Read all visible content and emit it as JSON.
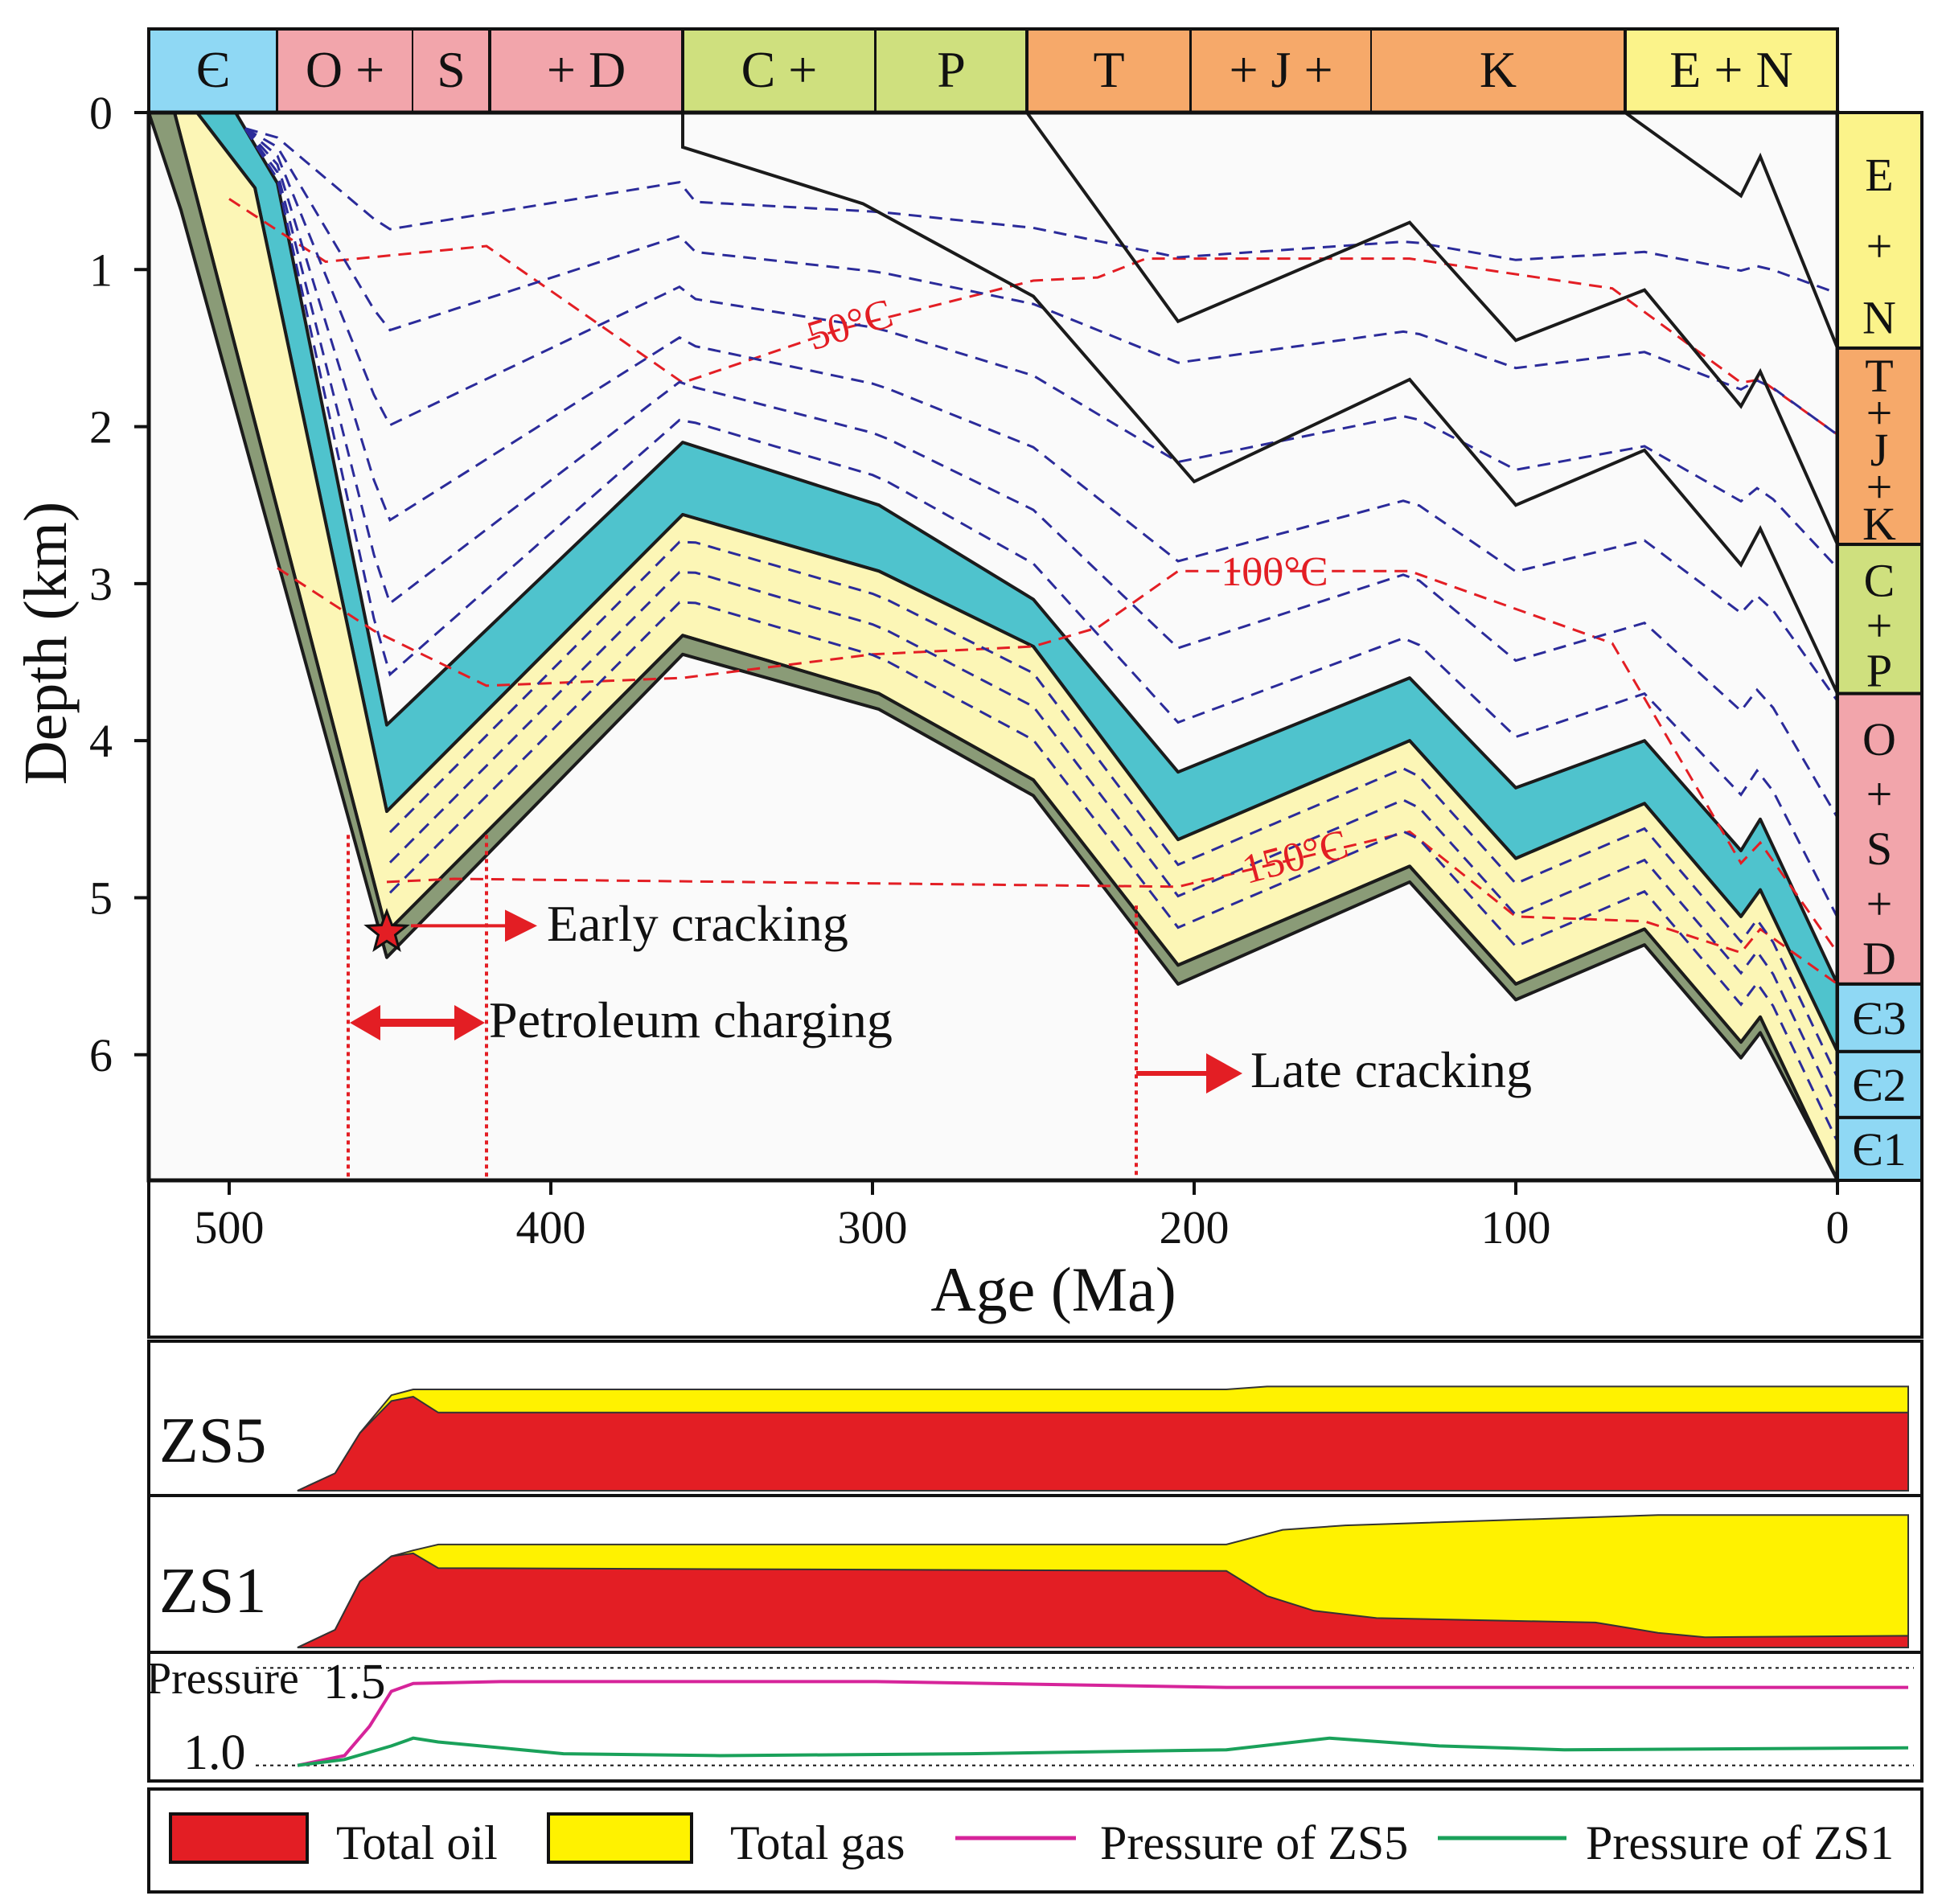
{
  "chart_data": {
    "type": "line",
    "title": "",
    "burial_history": {
      "xlabel": "Age (Ma)",
      "ylabel": "Depth (km)",
      "xlim": [
        525,
        0
      ],
      "ylim": [
        0,
        6.8
      ],
      "x_ticks": [
        "500",
        "400",
        "300",
        "200",
        "100",
        "0"
      ],
      "x_tick_values": [
        500,
        400,
        300,
        200,
        100,
        0
      ],
      "y_ticks": [
        "0",
        "1",
        "2",
        "3",
        "4",
        "5",
        "6"
      ],
      "y_tick_values": [
        0,
        1,
        2,
        3,
        4,
        5,
        6
      ],
      "periods_top": [
        {
          "id": "cambrian",
          "label": "Є",
          "start": 525,
          "end": 485,
          "color": "#8fd8f4"
        },
        {
          "id": "o-s-d-o",
          "label": "O +",
          "start": 485,
          "end": 443,
          "color": "#f2a5ab"
        },
        {
          "id": "o-s-d-s",
          "label": "S",
          "start": 443,
          "end": 419,
          "color": "#f2a5ab"
        },
        {
          "id": "o-s-d-d",
          "label": "+ D",
          "start": 419,
          "end": 359,
          "color": "#f2a5ab"
        },
        {
          "id": "c-p-c",
          "label": "C +",
          "start": 359,
          "end": 299,
          "color": "#cfe07e"
        },
        {
          "id": "c-p-p",
          "label": "P",
          "start": 299,
          "end": 252,
          "color": "#cfe07e"
        },
        {
          "id": "tjk-t",
          "label": "T",
          "start": 252,
          "end": 201,
          "color": "#f6a96a"
        },
        {
          "id": "tjk-j",
          "label": "+   J   +",
          "start": 201,
          "end": 145,
          "color": "#f6a96a"
        },
        {
          "id": "tjk-k",
          "label": "K",
          "start": 145,
          "end": 66,
          "color": "#f6a96a"
        },
        {
          "id": "e-n",
          "label": "E + N",
          "start": 66,
          "end": 0,
          "color": "#fbf38a"
        }
      ],
      "strata_column": [
        {
          "id": "e-n",
          "label": "E + N",
          "top": 0,
          "bottom": 1.5,
          "color": "#fbf38a"
        },
        {
          "id": "t-j-k",
          "label": "T + J + K",
          "top": 1.5,
          "bottom": 2.75,
          "color": "#f6a96a"
        },
        {
          "id": "c-p",
          "label": "C + P",
          "top": 2.75,
          "bottom": 3.7,
          "color": "#cfe07e"
        },
        {
          "id": "o-s-d",
          "label": "O + S + D",
          "top": 3.7,
          "bottom": 5.55,
          "color": "#f2a5ab"
        },
        {
          "id": "e3",
          "label": "Є3",
          "top": 5.55,
          "bottom": 5.98,
          "color": "#8fd8f4"
        },
        {
          "id": "e2",
          "label": "Є2",
          "top": 5.98,
          "bottom": 6.4,
          "color": "#8fd8f4"
        },
        {
          "id": "e1",
          "label": "Є1",
          "top": 6.4,
          "bottom": 6.8,
          "color": "#8fd8f4"
        }
      ],
      "burial_horizons": [
        {
          "name": "base E+N",
          "points": [
            [
              66,
              0
            ],
            [
              30,
              0.53
            ],
            [
              24,
              0.28
            ],
            [
              0,
              1.5
            ]
          ]
        },
        {
          "name": "base T+J+K",
          "points": [
            [
              252,
              0
            ],
            [
              205,
              1.33
            ],
            [
              133,
              0.7
            ],
            [
              100,
              1.45
            ],
            [
              60,
              1.13
            ],
            [
              30,
              1.87
            ],
            [
              24,
              1.65
            ],
            [
              0,
              2.75
            ]
          ]
        },
        {
          "name": "base C+P",
          "points": [
            [
              359,
              0
            ],
            [
              359,
              0.22
            ],
            [
              303,
              0.58
            ],
            [
              250,
              1.17
            ],
            [
              200,
              2.35
            ],
            [
              133,
              1.7
            ],
            [
              100,
              2.5
            ],
            [
              60,
              2.15
            ],
            [
              30,
              2.88
            ],
            [
              24,
              2.65
            ],
            [
              0,
              3.7
            ]
          ]
        }
      ],
      "layers": [
        {
          "name": "upper Cambrian (cyan)",
          "color": "#4fc3cd",
          "top": [
            [
              498,
              0
            ],
            [
              485,
              0.45
            ],
            [
              451,
              3.9
            ],
            [
              359,
              2.1
            ],
            [
              298,
              2.5
            ],
            [
              250,
              3.1
            ],
            [
              205,
              4.2
            ],
            [
              133,
              3.6
            ],
            [
              100,
              4.3
            ],
            [
              60,
              4.0
            ],
            [
              30,
              4.7
            ],
            [
              24,
              4.5
            ],
            [
              0,
              5.55
            ]
          ],
          "bottom": [
            [
              510,
              0
            ],
            [
              492,
              0.48
            ],
            [
              451,
              4.45
            ],
            [
              359,
              2.56
            ],
            [
              298,
              2.92
            ],
            [
              250,
              3.4
            ],
            [
              205,
              4.63
            ],
            [
              133,
              4.0
            ],
            [
              100,
              4.75
            ],
            [
              60,
              4.4
            ],
            [
              30,
              5.12
            ],
            [
              24,
              4.95
            ],
            [
              0,
              5.98
            ]
          ]
        },
        {
          "name": "middle-lower Cambrian (yellow)",
          "color": "#fcf6b6",
          "top": [
            [
              510,
              0
            ],
            [
              492,
              0.48
            ],
            [
              451,
              4.45
            ],
            [
              359,
              2.56
            ],
            [
              298,
              2.92
            ],
            [
              250,
              3.4
            ],
            [
              205,
              4.63
            ],
            [
              133,
              4.0
            ],
            [
              100,
              4.75
            ],
            [
              60,
              4.4
            ],
            [
              30,
              5.12
            ],
            [
              24,
              4.95
            ],
            [
              0,
              5.98
            ]
          ],
          "bottom": [
            [
              517,
              0
            ],
            [
              510,
              0.55
            ],
            [
              451,
              5.22
            ],
            [
              359,
              3.33
            ],
            [
              298,
              3.7
            ],
            [
              250,
              4.25
            ],
            [
              205,
              5.43
            ],
            [
              133,
              4.8
            ],
            [
              100,
              5.55
            ],
            [
              60,
              5.2
            ],
            [
              30,
              5.92
            ],
            [
              24,
              5.76
            ],
            [
              0,
              6.8
            ]
          ]
        },
        {
          "name": "basal Cambrian (olive)",
          "color": "#8a9b77",
          "top": [
            [
              517,
              0
            ],
            [
              510,
              0.55
            ],
            [
              451,
              5.22
            ],
            [
              359,
              3.33
            ],
            [
              298,
              3.7
            ],
            [
              250,
              4.25
            ],
            [
              205,
              5.43
            ],
            [
              133,
              4.8
            ],
            [
              100,
              5.55
            ],
            [
              60,
              5.2
            ],
            [
              30,
              5.92
            ],
            [
              24,
              5.76
            ],
            [
              0,
              6.8
            ]
          ],
          "bottom": [
            [
              525,
              0
            ],
            [
              515,
              0.62
            ],
            [
              451,
              5.38
            ],
            [
              359,
              3.45
            ],
            [
              298,
              3.8
            ],
            [
              250,
              4.35
            ],
            [
              205,
              5.55
            ],
            [
              133,
              4.9
            ],
            [
              100,
              5.65
            ],
            [
              60,
              5.3
            ],
            [
              30,
              6.02
            ],
            [
              24,
              5.86
            ],
            [
              0,
              6.8
            ]
          ]
        }
      ],
      "isotherms": [
        {
          "label": "50°C",
          "points": [
            [
              500,
              0.55
            ],
            [
              470,
              0.95
            ],
            [
              420,
              0.85
            ],
            [
              359,
              1.72
            ],
            [
              310,
              1.38
            ],
            [
              250,
              1.07
            ],
            [
              230,
              1.05
            ],
            [
              215,
              0.93
            ],
            [
              133,
              0.93
            ],
            [
              70,
              1.12
            ],
            [
              30,
              1.72
            ],
            [
              24,
              1.7
            ],
            [
              0,
              2.05
            ]
          ]
        },
        {
          "label": "100°C",
          "points": [
            [
              485,
              2.9
            ],
            [
              455,
              3.3
            ],
            [
              420,
              3.65
            ],
            [
              359,
              3.6
            ],
            [
              300,
              3.45
            ],
            [
              250,
              3.4
            ],
            [
              230,
              3.28
            ],
            [
              205,
              2.92
            ],
            [
              133,
              2.92
            ],
            [
              70,
              3.38
            ],
            [
              30,
              4.78
            ],
            [
              24,
              4.65
            ],
            [
              0,
              5.35
            ]
          ]
        },
        {
          "label": "150°C",
          "points": [
            [
              451,
              4.9
            ],
            [
              430,
              4.88
            ],
            [
              205,
              4.93
            ],
            [
              133,
              4.58
            ],
            [
              100,
              5.12
            ],
            [
              60,
              5.15
            ],
            [
              30,
              5.35
            ],
            [
              24,
              5.2
            ],
            [
              0,
              5.55
            ]
          ]
        }
      ],
      "annotations": {
        "early_cracking": "Early cracking",
        "petroleum_charging": "Petroleum charging",
        "late_cracking": "Late cracking",
        "early_cracking_age": 451,
        "charging_range": [
          463,
          420
        ],
        "late_cracking_age": 218
      }
    },
    "hydrocarbon_panels": [
      {
        "well": "ZS5",
        "oil_top": [
          [
            515,
            0
          ],
          [
            503,
            0.12
          ],
          [
            495,
            0.4
          ],
          [
            485,
            0.62
          ],
          [
            478,
            0.65
          ],
          [
            470,
            0.54
          ],
          [
            0,
            0.54
          ]
        ],
        "gas_top": [
          [
            515,
            0
          ],
          [
            503,
            0.12
          ],
          [
            495,
            0.4
          ],
          [
            485,
            0.66
          ],
          [
            478,
            0.7
          ],
          [
            470,
            0.7
          ],
          [
            218,
            0.7
          ],
          [
            205,
            0.72
          ],
          [
            0,
            0.72
          ]
        ]
      },
      {
        "well": "ZS1",
        "oil_top": [
          [
            515,
            0
          ],
          [
            503,
            0.12
          ],
          [
            495,
            0.45
          ],
          [
            485,
            0.62
          ],
          [
            478,
            0.64
          ],
          [
            470,
            0.54
          ],
          [
            218,
            0.52
          ],
          [
            205,
            0.35
          ],
          [
            190,
            0.25
          ],
          [
            170,
            0.2
          ],
          [
            100,
            0.17
          ],
          [
            80,
            0.1
          ],
          [
            65,
            0.07
          ],
          [
            0,
            0.08
          ]
        ],
        "gas_top": [
          [
            515,
            0
          ],
          [
            503,
            0.12
          ],
          [
            495,
            0.45
          ],
          [
            485,
            0.62
          ],
          [
            478,
            0.66
          ],
          [
            470,
            0.7
          ],
          [
            218,
            0.7
          ],
          [
            200,
            0.8
          ],
          [
            180,
            0.83
          ],
          [
            80,
            0.9
          ],
          [
            0,
            0.9
          ]
        ]
      }
    ],
    "pressure": {
      "label": "Pressure",
      "ticks": [
        "1.0",
        "1.5"
      ],
      "tick_values": [
        1.0,
        1.5
      ],
      "ylim": [
        0.92,
        1.58
      ],
      "series": [
        {
          "name": "Pressure of ZS5",
          "color": "#d6249a",
          "points": [
            [
              515,
              1.0
            ],
            [
              500,
              1.05
            ],
            [
              492,
              1.2
            ],
            [
              485,
              1.38
            ],
            [
              478,
              1.42
            ],
            [
              450,
              1.43
            ],
            [
              400,
              1.43
            ],
            [
              330,
              1.43
            ],
            [
              218,
              1.4
            ],
            [
              0,
              1.4
            ]
          ]
        },
        {
          "name": "Pressure of ZS1",
          "color": "#1aa15a",
          "points": [
            [
              515,
              1.0
            ],
            [
              500,
              1.03
            ],
            [
              485,
              1.1
            ],
            [
              478,
              1.14
            ],
            [
              470,
              1.12
            ],
            [
              430,
              1.06
            ],
            [
              380,
              1.05
            ],
            [
              300,
              1.06
            ],
            [
              218,
              1.08
            ],
            [
              185,
              1.14
            ],
            [
              150,
              1.1
            ],
            [
              110,
              1.08
            ],
            [
              0,
              1.09
            ]
          ]
        }
      ]
    },
    "legend": [
      {
        "label": "Total oil",
        "type": "box",
        "color": "#e31e24"
      },
      {
        "label": "Total gas",
        "type": "box",
        "color": "#fff200"
      },
      {
        "label": "Pressure of ZS5",
        "type": "line",
        "color": "#d6249a"
      },
      {
        "label": "Pressure of ZS1",
        "type": "line",
        "color": "#1aa15a"
      }
    ]
  }
}
